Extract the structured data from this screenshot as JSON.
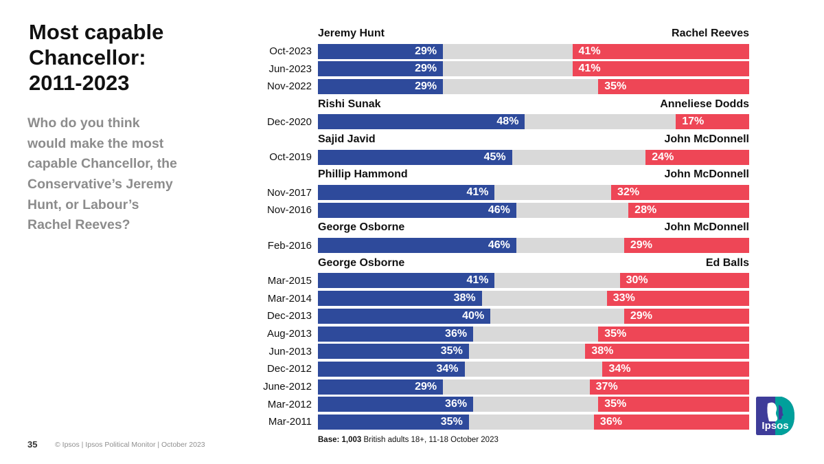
{
  "slide": {
    "title": "Most capable\nChancellor:\n2011-2023",
    "subtitle": "Who do you think\nwould make the most\ncapable Chancellor, the\nConservative’s Jeremy\nHunt, or Labour’s\nRachel Reeves?",
    "page_number": "35",
    "copyright": "© Ipsos | Ipsos Political Monitor | October 2023",
    "base_bold": "Base: 1,003",
    "base_rest": " British adults 18+,  11-18 October 2023",
    "logo_text": "Ipsos"
  },
  "chart_data": {
    "type": "bar",
    "orientation": "horizontal-diverging",
    "unit": "%",
    "axis_range": [
      0,
      100
    ],
    "colors": {
      "conservative_blue": "#2e4a9b",
      "labour_red": "#ee4656",
      "track_grey": "#d9d9d9"
    },
    "groups": [
      {
        "con_name": "Jeremy Hunt",
        "lab_name": "Rachel Reeves",
        "rows": [
          {
            "date": "Oct-2023",
            "con": 29,
            "lab": 41
          },
          {
            "date": "Jun-2023",
            "con": 29,
            "lab": 41
          },
          {
            "date": "Nov-2022",
            "con": 29,
            "lab": 35
          }
        ]
      },
      {
        "con_name": "Rishi Sunak",
        "lab_name": "Anneliese Dodds",
        "rows": [
          {
            "date": "Dec-2020",
            "con": 48,
            "lab": 17
          }
        ]
      },
      {
        "con_name": "Sajid Javid",
        "lab_name": "John McDonnell",
        "rows": [
          {
            "date": "Oct-2019",
            "con": 45,
            "lab": 24
          }
        ]
      },
      {
        "con_name": "Phillip Hammond",
        "lab_name": "John McDonnell",
        "rows": [
          {
            "date": "Nov-2017",
            "con": 41,
            "lab": 32
          },
          {
            "date": "Nov-2016",
            "con": 46,
            "lab": 28
          }
        ]
      },
      {
        "con_name": "George Osborne",
        "lab_name": "John McDonnell",
        "rows": [
          {
            "date": "Feb-2016",
            "con": 46,
            "lab": 29
          }
        ]
      },
      {
        "con_name": "George Osborne",
        "lab_name": "Ed Balls",
        "rows": [
          {
            "date": "Mar-2015",
            "con": 41,
            "lab": 30
          },
          {
            "date": "Mar-2014",
            "con": 38,
            "lab": 33
          },
          {
            "date": "Dec-2013",
            "con": 40,
            "lab": 29
          },
          {
            "date": "Aug-2013",
            "con": 36,
            "lab": 35
          },
          {
            "date": "Jun-2013",
            "con": 35,
            "lab": 38
          },
          {
            "date": "Dec-2012",
            "con": 34,
            "lab": 34
          },
          {
            "date": "June-2012",
            "con": 29,
            "lab": 37
          },
          {
            "date": "Mar-2012",
            "con": 36,
            "lab": 35
          },
          {
            "date": "Mar-2011",
            "con": 35,
            "lab": 36
          }
        ]
      }
    ]
  }
}
